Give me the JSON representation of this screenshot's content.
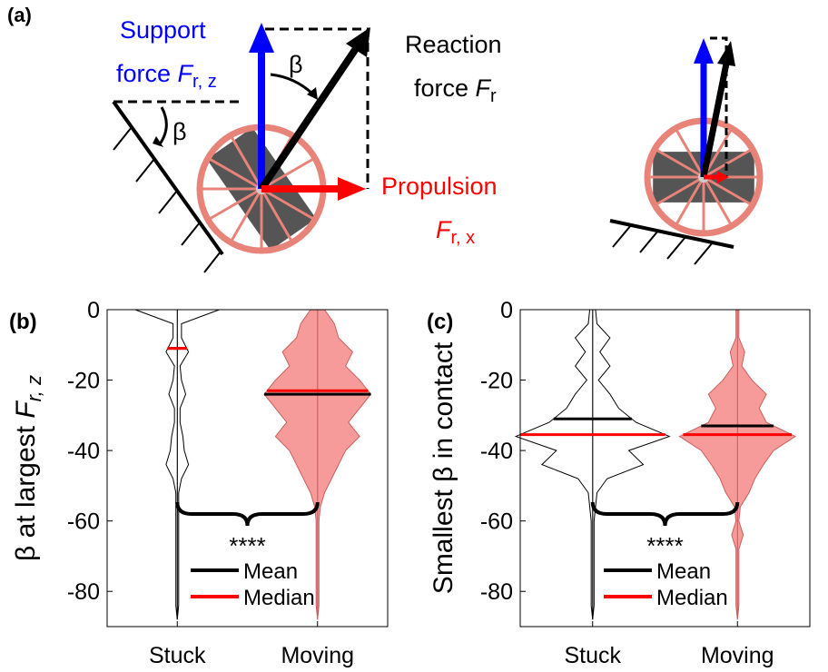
{
  "panel_a": {
    "label": "(a)",
    "support": {
      "line1": "Support",
      "line2": "force ",
      "symbol": "F",
      "subscript": "r, z"
    },
    "reaction": {
      "line1": "Reaction",
      "line2": "force ",
      "symbol": "F",
      "subscript": "r"
    },
    "propulsion": {
      "line1": "Propulsion",
      "symbol": "F",
      "subscript": "r, x"
    },
    "angle": "β"
  },
  "chart_data": [
    {
      "type": "violin",
      "panel_label": "(b)",
      "ylabel": {
        "text": "β at largest ",
        "symbol": "F",
        "subscript": "r, z"
      },
      "categories": [
        "Stuck",
        "Moving"
      ],
      "xlim": [
        0.5,
        2.5
      ],
      "ylim": [
        -90,
        0
      ],
      "yticks": [
        0,
        -20,
        -40,
        -60,
        -80
      ],
      "levels": [
        0,
        -4,
        -8,
        -12,
        -16,
        -20,
        -24,
        -28,
        -32,
        -36,
        -40,
        -44,
        -48,
        -52,
        -56,
        -60,
        -64,
        -68,
        -72,
        -76,
        -80,
        -84,
        -88
      ],
      "violins": [
        {
          "color": "#ffffff",
          "widths": [
            0.3,
            0.03,
            0.03,
            0.08,
            0.02,
            0.03,
            0.06,
            0.02,
            0.02,
            0.04,
            0.05,
            0.08,
            0.03,
            0.01,
            0.01,
            0.01,
            0.01,
            0.01,
            0.01,
            0.01,
            0.01,
            0.01,
            0
          ]
        },
        {
          "color": "#f79a9a",
          "widths": [
            0.05,
            0.12,
            0.15,
            0.25,
            0.2,
            0.3,
            0.38,
            0.3,
            0.22,
            0.3,
            0.2,
            0.15,
            0.1,
            0.05,
            0.02,
            0.01,
            0.01,
            0.01,
            0.01,
            0.01,
            0.01,
            0.01,
            0
          ]
        }
      ],
      "series": [
        {
          "name": "Mean",
          "color": "#000000",
          "values": [
            -11,
            -24
          ]
        },
        {
          "name": "Median",
          "color": "#ff0000",
          "values": [
            -11,
            -23
          ]
        }
      ],
      "annotation": "****",
      "legend": "lower center"
    },
    {
      "type": "violin",
      "panel_label": "(c)",
      "ylabel": {
        "text": "Smallest β in contact"
      },
      "categories": [
        "Stuck",
        "Moving"
      ],
      "xlim": [
        0.5,
        2.5
      ],
      "ylim": [
        -90,
        0
      ],
      "yticks": [
        0,
        -20,
        -40,
        -60,
        -80
      ],
      "levels": [
        0,
        -4,
        -8,
        -12,
        -16,
        -20,
        -24,
        -28,
        -32,
        -36,
        -40,
        -44,
        -48,
        -52,
        -56,
        -60,
        -64,
        -68,
        -72,
        -76,
        -80,
        -84,
        -88
      ],
      "violins": [
        {
          "color": "#ffffff",
          "widths": [
            0.02,
            0.03,
            0.12,
            0.05,
            0.12,
            0.04,
            0.12,
            0.18,
            0.3,
            0.53,
            0.25,
            0.35,
            0.1,
            0.03,
            0.02,
            0.01,
            0.01,
            0.01,
            0.01,
            0.01,
            0.01,
            0.01,
            0
          ]
        },
        {
          "color": "#f79a9a",
          "widths": [
            0.01,
            0.01,
            0.01,
            0.05,
            0.03,
            0.1,
            0.2,
            0.15,
            0.2,
            0.4,
            0.25,
            0.18,
            0.12,
            0.08,
            0.02,
            0.01,
            0.04,
            0.01,
            0.01,
            0.01,
            0.01,
            0.01,
            0
          ]
        }
      ],
      "series": [
        {
          "name": "Mean",
          "color": "#000000",
          "values": [
            -31,
            -33
          ]
        },
        {
          "name": "Median",
          "color": "#ff0000",
          "values": [
            -35.5,
            -35.5
          ]
        }
      ],
      "annotation": "****",
      "legend": "lower center"
    }
  ]
}
